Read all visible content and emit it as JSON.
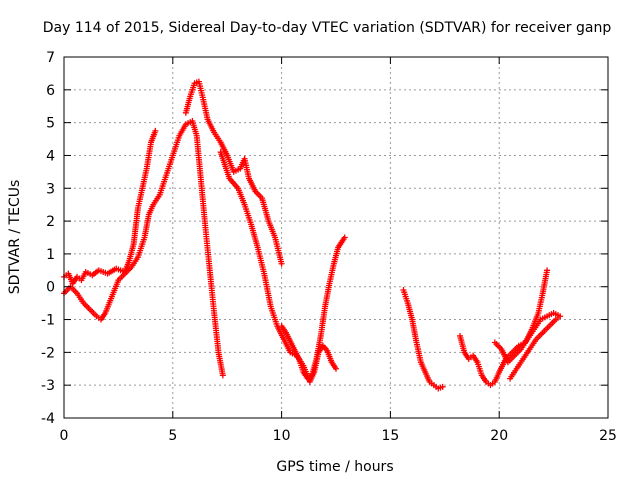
{
  "chart_data": {
    "type": "scatter",
    "title": "Day 114 of 2015, Sidereal Day-to-day VTEC variation (SDTVAR) for receiver ganp",
    "xlabel": "GPS time / hours",
    "ylabel": "SDTVAR / TECUs",
    "xlim": [
      0,
      25
    ],
    "ylim": [
      -4,
      7
    ],
    "xticks": [
      "0",
      "5",
      "10",
      "15",
      "20",
      "25"
    ],
    "yticks": [
      "-4",
      "-3",
      "-2",
      "-1",
      "0",
      "1",
      "2",
      "3",
      "4",
      "5",
      "6",
      "7"
    ],
    "grid": true,
    "marker": "plus",
    "color": "#ff0000",
    "segments": [
      [
        [
          0.0,
          0.3
        ],
        [
          0.2,
          0.4
        ],
        [
          0.4,
          0.1
        ],
        [
          0.6,
          0.3
        ],
        [
          0.8,
          0.2
        ],
        [
          1.0,
          0.45
        ],
        [
          1.3,
          0.35
        ],
        [
          1.6,
          0.5
        ],
        [
          2.0,
          0.4
        ],
        [
          2.4,
          0.55
        ],
        [
          2.8,
          0.45
        ],
        [
          3.0,
          0.8
        ],
        [
          3.2,
          1.3
        ],
        [
          3.4,
          2.4
        ],
        [
          3.6,
          3.0
        ],
        [
          3.8,
          3.6
        ],
        [
          4.0,
          4.4
        ],
        [
          4.2,
          4.75
        ]
      ],
      [
        [
          0.0,
          -0.2
        ],
        [
          0.3,
          0.0
        ],
        [
          0.6,
          -0.2
        ],
        [
          0.9,
          -0.5
        ],
        [
          1.2,
          -0.7
        ],
        [
          1.5,
          -0.9
        ],
        [
          1.7,
          -1.0
        ],
        [
          1.9,
          -0.8
        ],
        [
          2.2,
          -0.3
        ],
        [
          2.5,
          0.2
        ],
        [
          2.8,
          0.4
        ],
        [
          3.1,
          0.6
        ],
        [
          3.4,
          0.9
        ],
        [
          3.7,
          1.5
        ],
        [
          3.9,
          2.2
        ],
        [
          4.1,
          2.5
        ],
        [
          4.4,
          2.8
        ],
        [
          4.7,
          3.4
        ],
        [
          5.0,
          4.0
        ],
        [
          5.3,
          4.6
        ],
        [
          5.6,
          4.95
        ],
        [
          5.9,
          5.05
        ],
        [
          6.1,
          4.6
        ],
        [
          6.3,
          3.2
        ],
        [
          6.5,
          1.8
        ],
        [
          6.7,
          0.5
        ],
        [
          6.9,
          -0.8
        ],
        [
          7.1,
          -2.0
        ],
        [
          7.3,
          -2.7
        ]
      ],
      [
        [
          5.6,
          5.3
        ],
        [
          5.8,
          5.8
        ],
        [
          6.0,
          6.2
        ],
        [
          6.2,
          6.25
        ],
        [
          6.4,
          5.7
        ],
        [
          6.6,
          5.1
        ],
        [
          6.9,
          4.7
        ],
        [
          7.2,
          4.4
        ],
        [
          7.5,
          4.0
        ],
        [
          7.8,
          3.5
        ],
        [
          8.1,
          3.6
        ],
        [
          8.3,
          3.9
        ],
        [
          8.5,
          3.3
        ],
        [
          8.8,
          2.9
        ],
        [
          9.1,
          2.7
        ],
        [
          9.4,
          2.0
        ],
        [
          9.7,
          1.5
        ],
        [
          10.0,
          0.7
        ]
      ],
      [
        [
          7.2,
          4.1
        ],
        [
          7.6,
          3.3
        ],
        [
          8.0,
          3.0
        ],
        [
          8.3,
          2.5
        ],
        [
          8.6,
          1.9
        ],
        [
          8.9,
          1.2
        ],
        [
          9.2,
          0.4
        ],
        [
          9.5,
          -0.6
        ],
        [
          9.8,
          -1.2
        ],
        [
          10.1,
          -1.6
        ],
        [
          10.4,
          -2.0
        ],
        [
          10.7,
          -2.1
        ],
        [
          11.0,
          -2.4
        ],
        [
          11.3,
          -2.9
        ],
        [
          11.5,
          -2.6
        ],
        [
          11.7,
          -2.0
        ],
        [
          11.9,
          -1.8
        ],
        [
          12.1,
          -1.95
        ],
        [
          12.3,
          -2.3
        ],
        [
          12.5,
          -2.5
        ]
      ],
      [
        [
          10.0,
          -1.2
        ],
        [
          10.2,
          -1.4
        ],
        [
          10.5,
          -1.8
        ],
        [
          10.8,
          -2.2
        ],
        [
          11.0,
          -2.6
        ],
        [
          11.2,
          -2.8
        ],
        [
          11.4,
          -2.7
        ],
        [
          11.6,
          -2.2
        ],
        [
          11.8,
          -1.5
        ],
        [
          12.0,
          -0.6
        ],
        [
          12.2,
          0.1
        ],
        [
          12.4,
          0.7
        ],
        [
          12.6,
          1.2
        ],
        [
          12.8,
          1.4
        ],
        [
          12.9,
          1.5
        ]
      ],
      [
        [
          15.6,
          -0.1
        ],
        [
          15.8,
          -0.5
        ],
        [
          16.0,
          -1.0
        ],
        [
          16.2,
          -1.7
        ],
        [
          16.4,
          -2.3
        ],
        [
          16.6,
          -2.6
        ],
        [
          16.8,
          -2.9
        ],
        [
          17.0,
          -3.0
        ],
        [
          17.2,
          -3.1
        ],
        [
          17.4,
          -3.05
        ]
      ],
      [
        [
          18.2,
          -1.5
        ],
        [
          18.4,
          -2.0
        ],
        [
          18.6,
          -2.2
        ],
        [
          18.8,
          -2.1
        ],
        [
          19.0,
          -2.3
        ],
        [
          19.2,
          -2.7
        ],
        [
          19.4,
          -2.9
        ],
        [
          19.6,
          -3.0
        ],
        [
          19.8,
          -2.9
        ],
        [
          20.0,
          -2.6
        ],
        [
          20.3,
          -2.2
        ],
        [
          20.6,
          -2.0
        ],
        [
          20.9,
          -1.8
        ],
        [
          21.2,
          -1.7
        ],
        [
          21.5,
          -1.3
        ],
        [
          21.8,
          -0.8
        ],
        [
          22.0,
          -0.2
        ],
        [
          22.2,
          0.5
        ]
      ],
      [
        [
          19.8,
          -1.7
        ],
        [
          20.1,
          -1.9
        ],
        [
          20.4,
          -2.3
        ],
        [
          20.7,
          -2.1
        ],
        [
          21.0,
          -1.9
        ],
        [
          21.3,
          -1.6
        ],
        [
          21.6,
          -1.3
        ],
        [
          21.9,
          -1.0
        ],
        [
          22.2,
          -0.9
        ],
        [
          22.5,
          -0.8
        ],
        [
          22.8,
          -0.9
        ],
        [
          22.6,
          -1.0
        ],
        [
          22.3,
          -1.2
        ],
        [
          22.0,
          -1.4
        ],
        [
          21.7,
          -1.6
        ],
        [
          21.4,
          -1.9
        ],
        [
          21.1,
          -2.2
        ],
        [
          20.8,
          -2.5
        ],
        [
          20.5,
          -2.8
        ]
      ]
    ]
  }
}
